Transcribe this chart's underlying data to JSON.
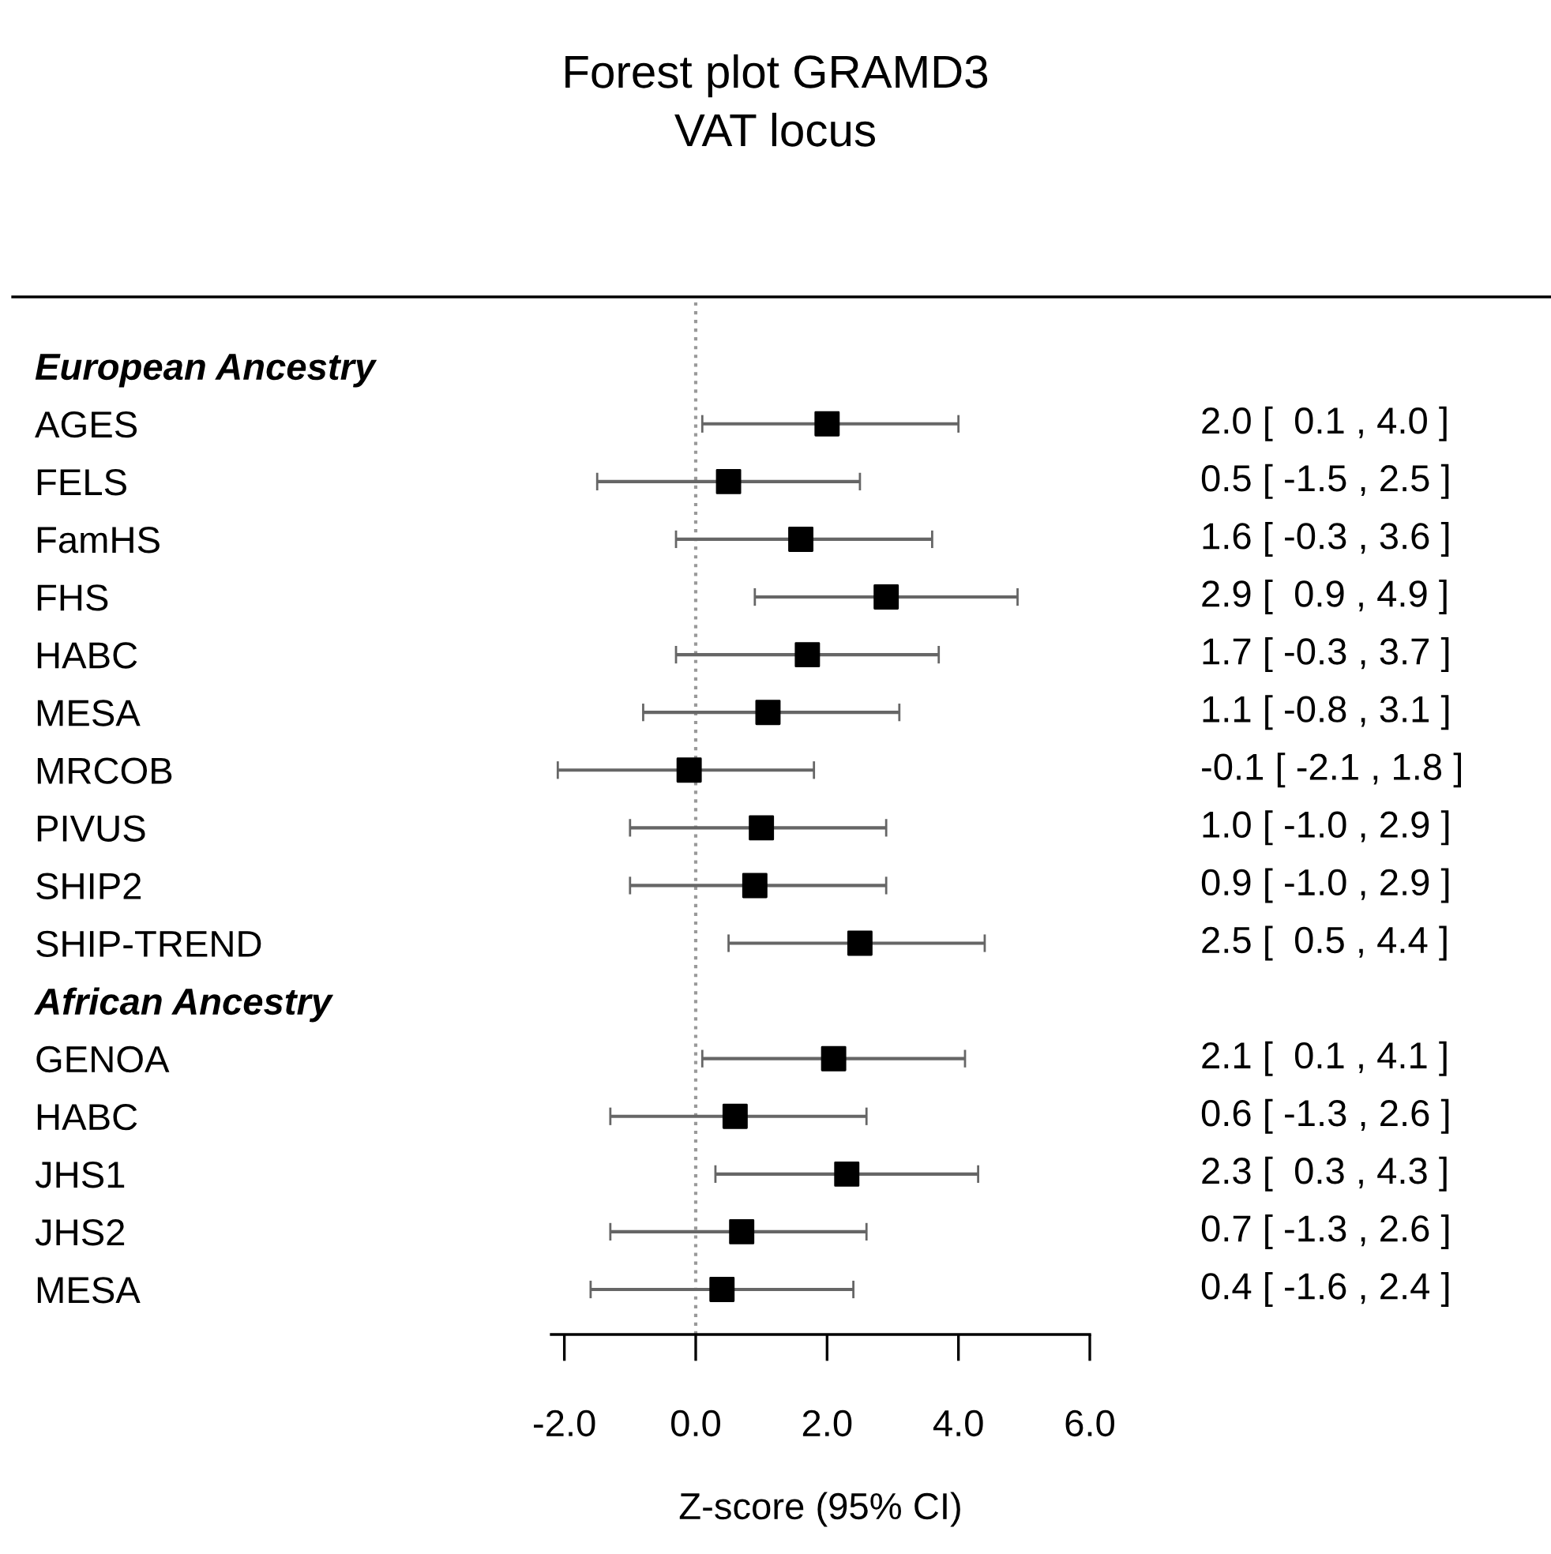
{
  "chart_data": {
    "type": "scatter",
    "orientation": "horizontal",
    "title": "Forest plot GRAMD3",
    "subtitle": "VAT locus",
    "xlabel": "Z-score (95% CI)",
    "categories": [
      "European Ancestry",
      "AGES",
      "FELS",
      "FamHS",
      "FHS",
      "HABC",
      "MESA",
      "MRCOB",
      "PIVUS",
      "SHIP2",
      "SHIP-TREND",
      "African Ancestry",
      "GENOA",
      "HABC",
      "JHS1",
      "JHS2",
      "MESA"
    ],
    "series": [
      {
        "color": "#000000",
        "values": [
          null,
          2.0,
          0.5,
          1.6,
          2.9,
          1.7,
          1.1,
          -0.1,
          1.0,
          0.9,
          2.5,
          null,
          2.1,
          0.6,
          2.3,
          0.7,
          0.4
        ],
        "errors": [
          null,
          [
            0.1,
            4.0
          ],
          [
            -1.5,
            2.5
          ],
          [
            -0.3,
            3.6
          ],
          [
            0.9,
            4.9
          ],
          [
            -0.3,
            3.7
          ],
          [
            -0.8,
            3.1
          ],
          [
            -2.1,
            1.8
          ],
          [
            -1.0,
            2.9
          ],
          [
            -1.0,
            2.9
          ],
          [
            0.5,
            4.4
          ],
          null,
          [
            0.1,
            4.1
          ],
          [
            -1.3,
            2.6
          ],
          [
            0.3,
            4.3
          ],
          [
            -1.3,
            2.6
          ],
          [
            -1.6,
            2.4
          ]
        ],
        "value_labels": [
          null,
          "2.0 [  0.1 , 4.0 ]",
          "0.5 [ -1.5 , 2.5 ]",
          "1.6 [ -0.3 , 3.6 ]",
          "2.9 [  0.9 , 4.9 ]",
          "1.7 [ -0.3 , 3.7 ]",
          "1.1 [ -0.8 , 3.1 ]",
          "-0.1 [ -2.1 , 1.8 ]",
          "1.0 [ -1.0 , 2.9 ]",
          "0.9 [ -1.0 , 2.9 ]",
          "2.5 [  0.5 , 4.4 ]",
          null,
          "2.1 [  0.1 , 4.1 ]",
          "0.6 [ -1.3 , 2.6 ]",
          "2.3 [  0.3 , 4.3 ]",
          "0.7 [ -1.3 , 2.6 ]",
          "0.4 [ -1.6 , 2.4 ]"
        ]
      }
    ],
    "marker": "square",
    "xlim": [
      -2.2,
      6.0
    ],
    "xticks": [
      {
        "value": -2,
        "label": "-2.0"
      },
      {
        "value": 0,
        "label": "0.0"
      },
      {
        "value": 2,
        "label": "2.0"
      },
      {
        "value": 4,
        "label": "4.0"
      },
      {
        "value": 6,
        "label": "6.0"
      }
    ],
    "ref_lines": [
      {
        "axis": "x",
        "value": 0,
        "color": "#999999",
        "line_style": "dotted"
      }
    ],
    "grid": false
  }
}
